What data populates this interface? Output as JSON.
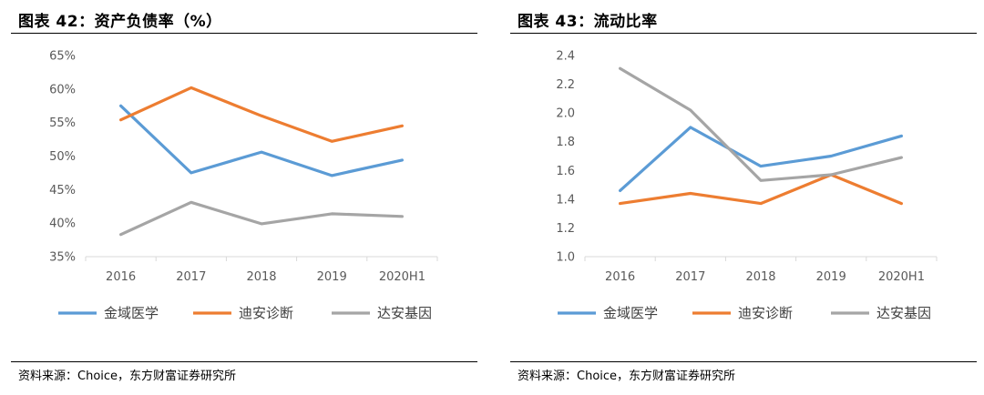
{
  "charts": [
    {
      "title": "图表 42：资产负债率（%）",
      "source": "资料来源：Choice，东方财富证券研究所",
      "chart_data": {
        "type": "line",
        "categories": [
          "2016",
          "2017",
          "2018",
          "2019",
          "2020H1"
        ],
        "ylim": [
          35,
          65
        ],
        "yticks": [
          35,
          40,
          45,
          50,
          55,
          60,
          65
        ],
        "y_unit": "%",
        "y_decimals": 0,
        "grid": false,
        "legend_position": "bottom",
        "series": [
          {
            "name": "金域医学",
            "color": "#5B9BD5",
            "values": [
              57.5,
              47.5,
              50.6,
              47.1,
              49.4
            ]
          },
          {
            "name": "迪安诊断",
            "color": "#ED7D31",
            "values": [
              55.4,
              60.2,
              56.0,
              52.2,
              54.5
            ]
          },
          {
            "name": "达安基因",
            "color": "#A5A5A5",
            "values": [
              38.3,
              43.1,
              39.9,
              41.4,
              41.0
            ]
          }
        ]
      }
    },
    {
      "title": "图表 43：流动比率",
      "source": "资料来源：Choice，东方财富证券研究所",
      "chart_data": {
        "type": "line",
        "categories": [
          "2016",
          "2017",
          "2018",
          "2019",
          "2020H1"
        ],
        "ylim": [
          1.0,
          2.4
        ],
        "yticks": [
          1.0,
          1.2,
          1.4,
          1.6,
          1.8,
          2.0,
          2.2,
          2.4
        ],
        "y_unit": "",
        "y_decimals": 1,
        "grid": false,
        "legend_position": "bottom",
        "series": [
          {
            "name": "金域医学",
            "color": "#5B9BD5",
            "values": [
              1.46,
              1.9,
              1.63,
              1.7,
              1.84
            ]
          },
          {
            "name": "迪安诊断",
            "color": "#ED7D31",
            "values": [
              1.37,
              1.44,
              1.37,
              1.57,
              1.37
            ]
          },
          {
            "name": "达安基因",
            "color": "#A5A5A5",
            "values": [
              2.31,
              2.02,
              1.53,
              1.57,
              1.69
            ]
          }
        ]
      }
    }
  ]
}
